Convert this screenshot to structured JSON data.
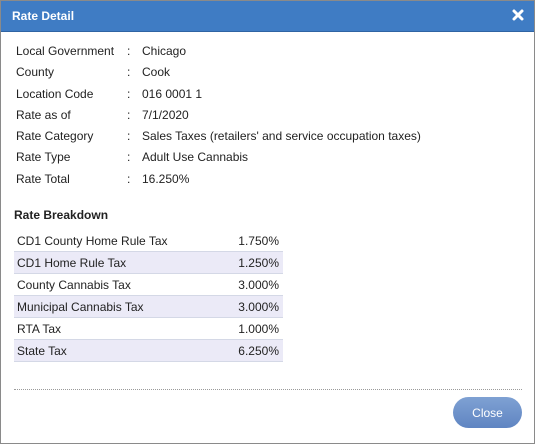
{
  "dialog": {
    "title": "Rate Detail",
    "close_icon": "close-x-icon",
    "close_button_label": "Close"
  },
  "details": [
    {
      "label": "Local Government",
      "sep": ":",
      "value": "Chicago"
    },
    {
      "label": "County",
      "sep": ":",
      "value": "Cook"
    },
    {
      "label": "Location Code",
      "sep": ":",
      "value": "016 0001 1"
    },
    {
      "label": "Rate as of",
      "sep": ":",
      "value": "7/1/2020"
    },
    {
      "label": "Rate Category",
      "sep": ":",
      "value": "Sales Taxes (retailers' and service occupation taxes)"
    },
    {
      "label": "Rate Type",
      "sep": ":",
      "value": "Adult Use Cannabis"
    },
    {
      "label": "Rate Total",
      "sep": ":",
      "value": "16.250%"
    }
  ],
  "breakdown": {
    "title": "Rate Breakdown",
    "rows": [
      {
        "name": "CD1 County Home Rule Tax",
        "rate": "1.750%"
      },
      {
        "name": "CD1 Home Rule Tax",
        "rate": "1.250%"
      },
      {
        "name": "County Cannabis Tax",
        "rate": "3.000%"
      },
      {
        "name": "Municipal Cannabis Tax",
        "rate": "3.000%"
      },
      {
        "name": "RTA Tax",
        "rate": "1.000%"
      },
      {
        "name": "State Tax",
        "rate": "6.250%"
      }
    ]
  },
  "colors": {
    "titlebar": "#3f7cc4",
    "alt_row": "#ebeaf7",
    "button": "#6b8fca"
  }
}
